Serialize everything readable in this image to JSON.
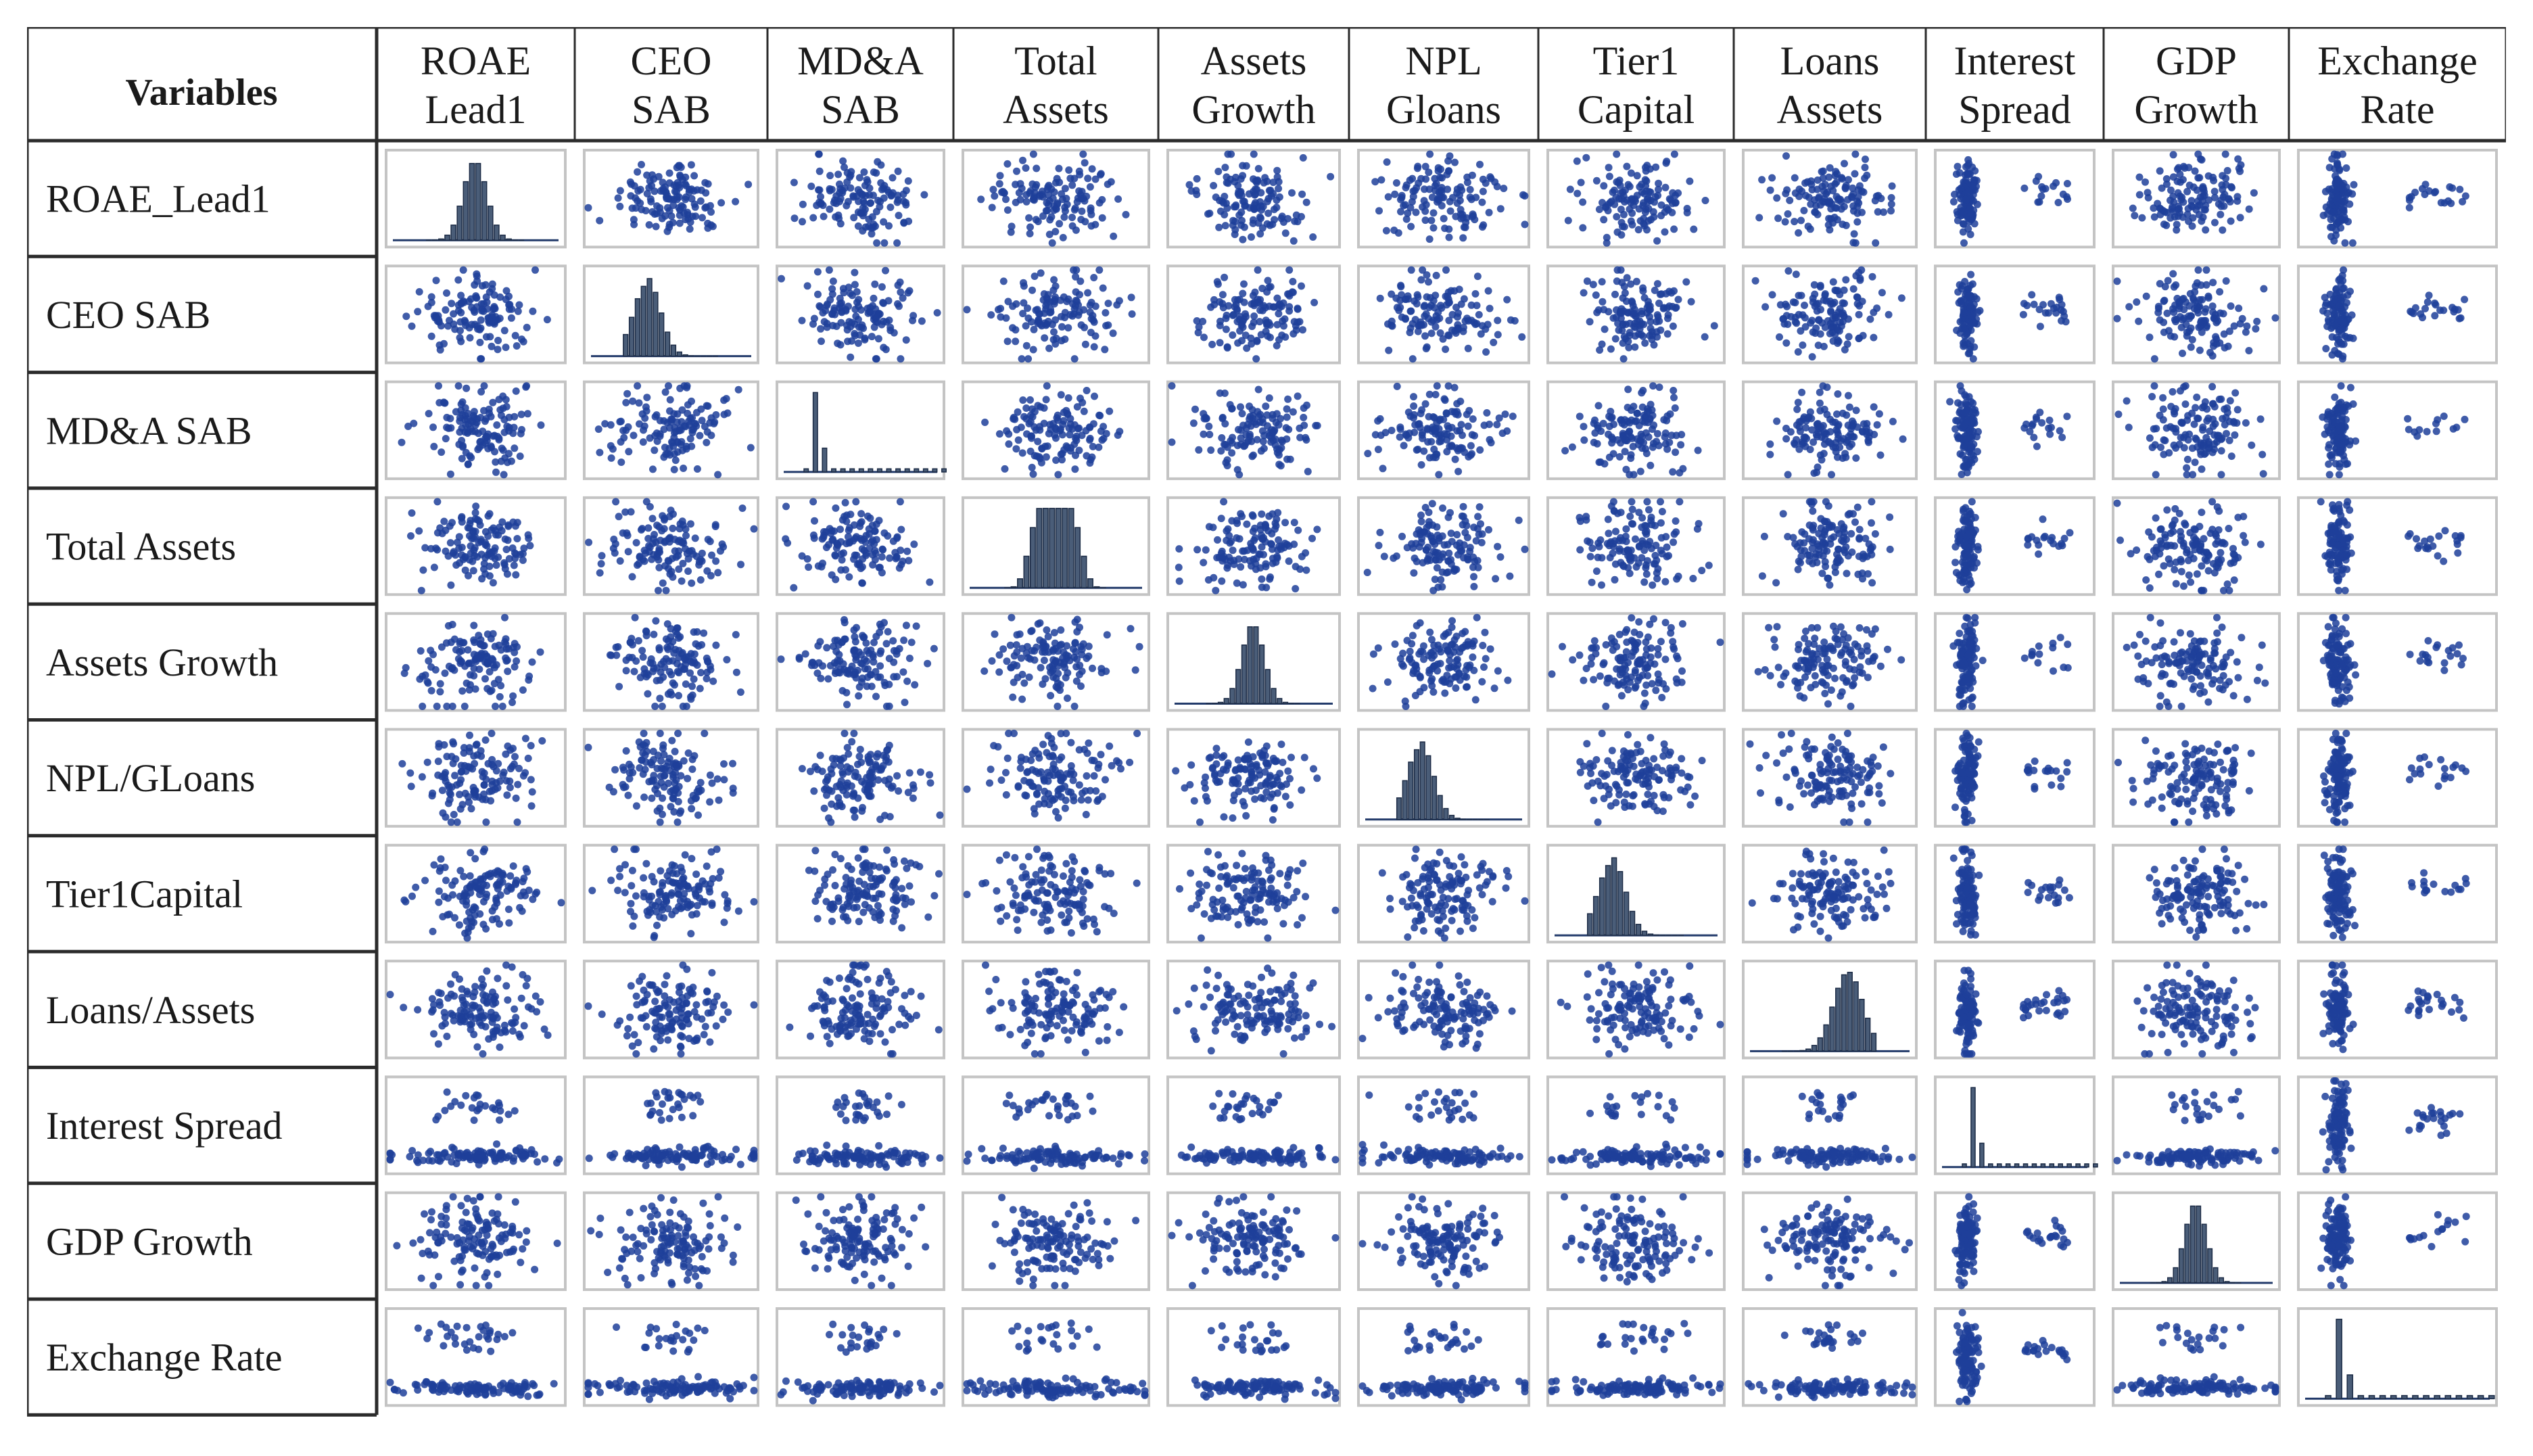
{
  "chart_data": {
    "type": "scatter",
    "subtype": "scatter-plot-matrix",
    "corner_header": "Variables",
    "column_headers": [
      [
        "ROAE",
        "Lead1"
      ],
      [
        "CEO",
        "SAB"
      ],
      [
        "MD&A",
        "SAB"
      ],
      [
        "Total",
        "Assets"
      ],
      [
        "Assets",
        "Growth"
      ],
      [
        "NPL",
        "Gloans"
      ],
      [
        "Tier1",
        "Capital"
      ],
      [
        "Loans",
        "Assets"
      ],
      [
        "Interest",
        "Spread"
      ],
      [
        "GDP",
        "Growth"
      ],
      [
        "Exchange",
        "Rate"
      ]
    ],
    "row_labels": [
      "ROAE_Lead1",
      "CEO SAB",
      "MD&A SAB",
      "Total Assets",
      "Assets Growth",
      "NPL/GLoans",
      "Tier1Capital",
      "Loans/Assets",
      "Interest Spread",
      "GDP Growth",
      "Exchange Rate"
    ],
    "diagonal": "histogram",
    "off_diagonal": "scatter",
    "point_color": "#1f3f9a",
    "histogram_fill": "#4a5d78",
    "histogram_shapes": [
      "symmetric",
      "right-skewed",
      "spike-left",
      "plateau",
      "symmetric",
      "right-skewed",
      "right-skewed",
      "left-skewed",
      "spike-left",
      "symmetric",
      "spike-left"
    ]
  }
}
